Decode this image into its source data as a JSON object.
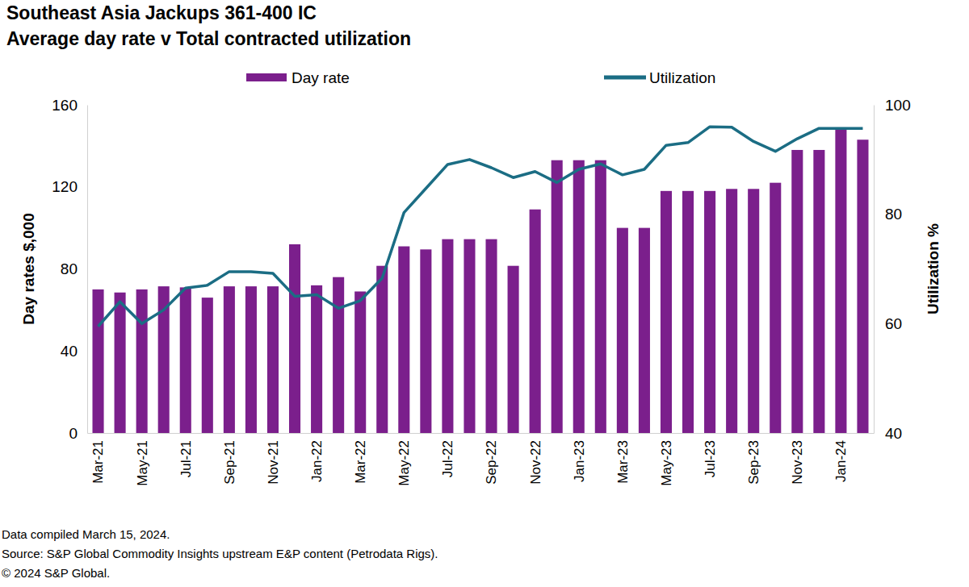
{
  "chart_data": {
    "type": "bar",
    "title": "Southeast Asia Jackups 361-400 IC",
    "subtitle": "Average day rate v Total contracted utilization",
    "ylabel": "Day rates $,000",
    "y2label": "Utilization %",
    "notes": [
      "Data compiled March 15, 2024.",
      "Source: S&P Global Commodity Insights upstream E&P content (Petrodata Rigs).",
      "© 2024 S&P Global."
    ],
    "categories": [
      "Mar-21",
      null,
      "May-21",
      null,
      "Jul-21",
      null,
      "Sep-21",
      null,
      "Nov-21",
      null,
      "Jan-22",
      null,
      "Mar-22",
      null,
      "May-22",
      null,
      "Jul-22",
      null,
      "Sep-22",
      null,
      "Nov-22",
      null,
      "Jan-23",
      null,
      "Mar-23",
      null,
      "May-23",
      null,
      "Jul-23",
      null,
      "Sep-23",
      null,
      "Nov-23",
      null,
      "Jan-24",
      null
    ],
    "series": [
      {
        "name": "Day rate",
        "type": "bar",
        "color": "#7b1f8c",
        "values": [
          70,
          68.5,
          70,
          71.5,
          71,
          66,
          71.5,
          71.5,
          71.5,
          92,
          72,
          76,
          69,
          81.5,
          91,
          89.5,
          94.5,
          94.5,
          94.5,
          81.5,
          109,
          133,
          133,
          133,
          100,
          100,
          118,
          118,
          118,
          119,
          119,
          122,
          138,
          138,
          149,
          143
        ]
      },
      {
        "name": "Utilization",
        "type": "line",
        "axis": "y2",
        "color": "#1b6d84",
        "values": [
          59.5,
          64,
          60,
          62.5,
          66.5,
          67,
          69.5,
          69.5,
          69.2,
          65,
          65.3,
          62.8,
          64.2,
          68.3,
          80.3,
          84.7,
          89.1,
          90,
          88.5,
          86.7,
          87.8,
          85.8,
          88.2,
          89.2,
          87.2,
          88.2,
          92.6,
          93.1,
          96,
          95.9,
          93.3,
          91.5,
          93.8,
          95.7,
          95.7,
          95.7
        ]
      }
    ],
    "ylim": [
      0,
      160
    ],
    "yticks": [
      0,
      40,
      80,
      120,
      160
    ],
    "y2lim": [
      40,
      100
    ],
    "y2ticks": [
      40,
      60,
      80,
      100
    ],
    "grid": false,
    "legend": "top"
  }
}
